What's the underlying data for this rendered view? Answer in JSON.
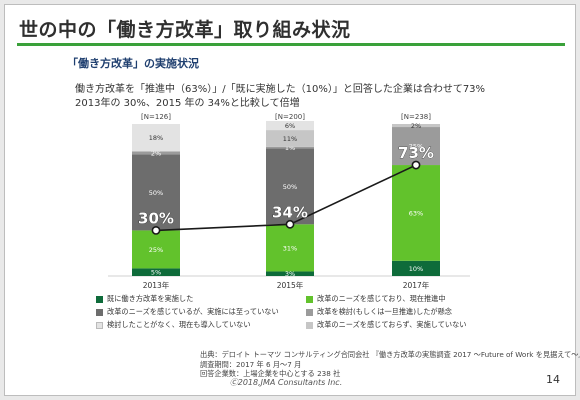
{
  "slide": {
    "title": "世の中の「働き方改革」取り組み状況",
    "subtitle": "「働き方改革」の実施状況",
    "desc_line1": "働き方改革を「推進中（63%）」/「既に実施した（10%）」と回答した企業は合わせて73%",
    "desc_line2": "2013年の 30%、2015 年の 34%と比較して倍増",
    "source_line1": "出典：デロイト トーマツ コンサルティング合同会社 『働き方改革の実態調査 2017 ～Future of Work を見据えて～』",
    "source_line2": "調査期間：2017 年 6 月～7 月",
    "source_line3": "回答企業数：上場企業を中心とする 238 社",
    "footer": "Ⓒ2018,JMA Consultants Inc.",
    "page_number": "14"
  },
  "colors": {
    "accent": "#3aa13a",
    "line": "#1a1a1a"
  },
  "chart_data": {
    "type": "bar",
    "stacked": true,
    "categories": [
      "2013年",
      "2015年",
      "2017年"
    ],
    "n_labels": [
      "[N=126]",
      "[N=200]",
      "[N=238]"
    ],
    "ylim": [
      0,
      100
    ],
    "series": [
      {
        "name": "既に働き方改革を実施した",
        "values": [
          5,
          3,
          10
        ],
        "color": "#0e6b3a",
        "labels": [
          "5%",
          "3%",
          "10%"
        ],
        "label_color": "#ffffff"
      },
      {
        "name": "改革のニーズを感じており、現在推進中",
        "values": [
          25,
          31,
          63
        ],
        "color": "#62c22c",
        "labels": [
          "25%",
          "31%",
          "63%"
        ],
        "label_color": "#ffffff"
      },
      {
        "name": "改革のニーズを感じているが、実施には至っていない",
        "values": [
          50,
          50,
          0
        ],
        "color": "#6d6d6d",
        "labels": [
          "50%",
          "50%",
          ""
        ],
        "label_color": "#ffffff"
      },
      {
        "name": "改革を検討(もしくは一旦推進)したが懸念",
        "values": [
          2,
          1,
          25
        ],
        "color": "#9b9b9b",
        "labels": [
          "2%",
          "1%",
          "25%"
        ],
        "label_color": "#ffffff"
      },
      {
        "name": "改革のニーズを感じておらず、実施していない",
        "values": [
          0,
          11,
          2
        ],
        "color": "#c6c6c6",
        "labels": [
          "",
          "11%",
          "2%"
        ],
        "label_color": "#333333"
      },
      {
        "name": "検討したことがなく、現在も導入していない",
        "values": [
          18,
          6,
          0
        ],
        "color": "#e3e3e3",
        "labels": [
          "18%",
          "6%",
          ""
        ],
        "label_color": "#333333"
      }
    ],
    "trend": {
      "values": [
        30,
        34,
        73
      ],
      "labels": [
        "30%",
        "34%",
        "73%"
      ]
    },
    "legend_order": [
      0,
      1,
      2,
      3,
      5,
      4
    ]
  }
}
